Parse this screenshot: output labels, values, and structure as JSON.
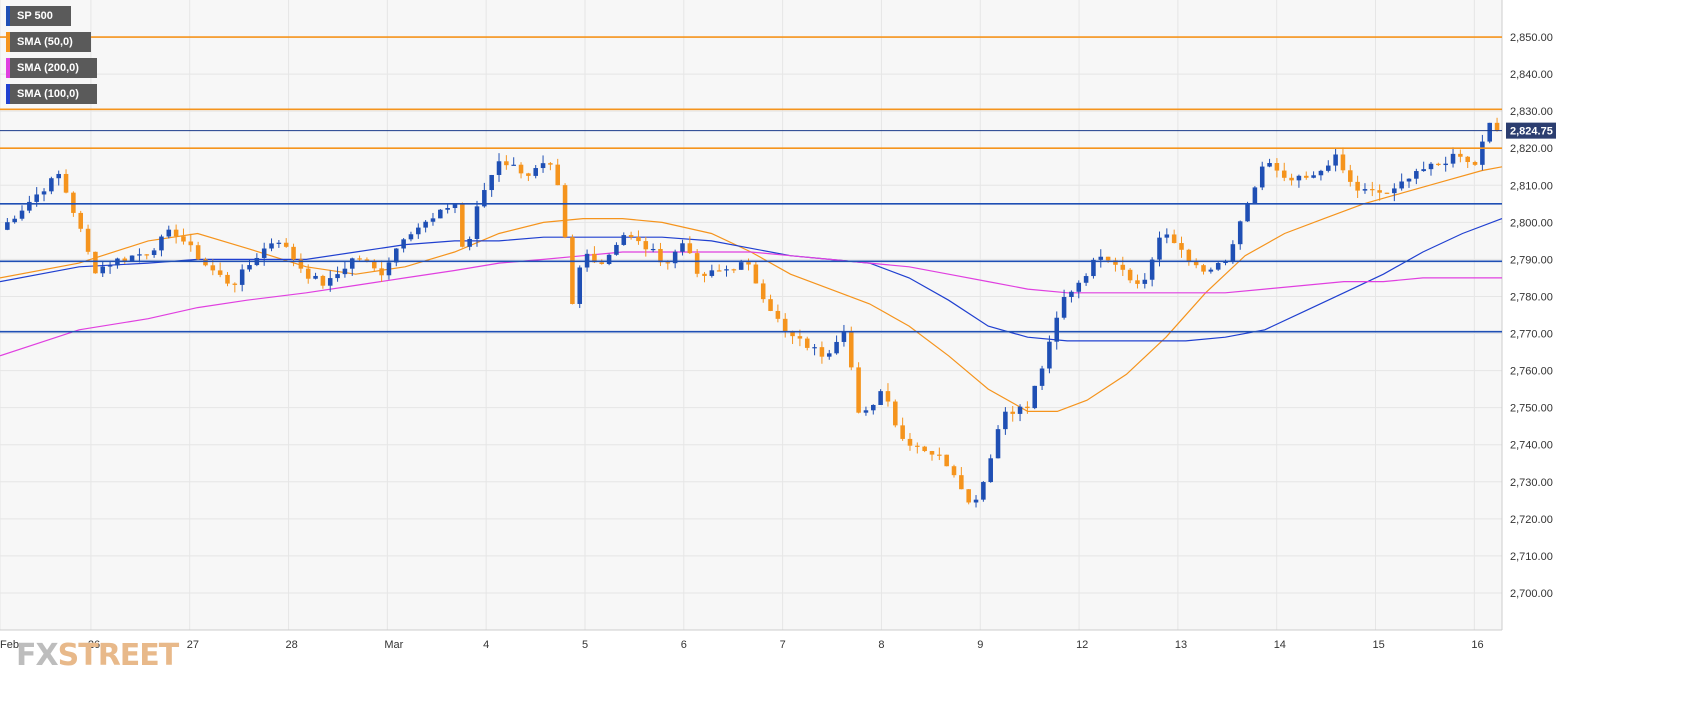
{
  "legend": [
    {
      "label": "SP 500",
      "color": "#1f4fb4"
    },
    {
      "label": "SMA (50,0)",
      "color": "#f5941d"
    },
    {
      "label": "SMA (200,0)",
      "color": "#e040e0"
    },
    {
      "label": "SMA (100,0)",
      "color": "#2040d0"
    }
  ],
  "watermark": {
    "fx": "FX",
    "street": "STREET"
  },
  "colors": {
    "up_candle": "#1f4fb4",
    "down_candle": "#f5941d",
    "resistance": "#f5941d",
    "support": "#1f4fb4",
    "current_price_line": "#1a3a8a",
    "sma50": "#f5941d",
    "sma100": "#2040d0",
    "sma200": "#e040e0",
    "grid": "#e6e6e6",
    "plot_bg": "#f7f7f7"
  },
  "chart_data": {
    "type": "candlestick",
    "title": "",
    "instrument": "SP 500",
    "ylim": [
      2690,
      2860
    ],
    "yticks": [
      2700,
      2710,
      2720,
      2730,
      2740,
      2750,
      2760,
      2770,
      2780,
      2790,
      2800,
      2810,
      2820,
      2830,
      2840,
      2850
    ],
    "ytick_labels": [
      "2,700.00",
      "2,710.00",
      "2,720.00",
      "2,730.00",
      "2,740.00",
      "2,750.00",
      "2,760.00",
      "2,770.00",
      "2,780.00",
      "2,790.00",
      "2,800.00",
      "2,810.00",
      "2,820.00",
      "2,830.00",
      "2,840.00",
      "2,850.00"
    ],
    "x_range": [
      0,
      15.2
    ],
    "xticks": [
      {
        "label": "Feb",
        "x": 0.0
      },
      {
        "label": "26",
        "x": 0.92
      },
      {
        "label": "27",
        "x": 1.92
      },
      {
        "label": "28",
        "x": 2.92
      },
      {
        "label": "Mar",
        "x": 3.92
      },
      {
        "label": "4",
        "x": 4.92
      },
      {
        "label": "5",
        "x": 5.92
      },
      {
        "label": "6",
        "x": 6.92
      },
      {
        "label": "7",
        "x": 7.92
      },
      {
        "label": "8",
        "x": 8.92
      },
      {
        "label": "9",
        "x": 9.92
      },
      {
        "label": "12",
        "x": 10.92
      },
      {
        "label": "13",
        "x": 11.92
      },
      {
        "label": "14",
        "x": 12.92
      },
      {
        "label": "15",
        "x": 13.92
      },
      {
        "label": "16",
        "x": 14.92
      }
    ],
    "current_price": 2824.75,
    "current_price_label": "2,824.75",
    "horizontal_levels": [
      {
        "value": 2850,
        "kind": "resistance"
      },
      {
        "value": 2830.5,
        "kind": "resistance"
      },
      {
        "value": 2820,
        "kind": "resistance"
      },
      {
        "value": 2805,
        "kind": "support"
      },
      {
        "value": 2789.5,
        "kind": "support"
      },
      {
        "value": 2770.5,
        "kind": "support"
      }
    ],
    "price_path": [
      [
        0.0,
        2798
      ],
      [
        0.35,
        2807
      ],
      [
        0.6,
        2813
      ],
      [
        0.8,
        2799
      ],
      [
        0.95,
        2787
      ],
      [
        1.2,
        2790
      ],
      [
        1.5,
        2792
      ],
      [
        1.75,
        2798
      ],
      [
        2.1,
        2788
      ],
      [
        2.35,
        2783
      ],
      [
        2.6,
        2791
      ],
      [
        2.8,
        2796
      ],
      [
        3.1,
        2786
      ],
      [
        3.3,
        2783
      ],
      [
        3.6,
        2791
      ],
      [
        3.85,
        2786
      ],
      [
        4.1,
        2797
      ],
      [
        4.4,
        2801
      ],
      [
        4.6,
        2806
      ],
      [
        4.7,
        2790
      ],
      [
        4.85,
        2806
      ],
      [
        5.05,
        2817
      ],
      [
        5.35,
        2813
      ],
      [
        5.55,
        2816
      ],
      [
        5.7,
        2805
      ],
      [
        5.76,
        2773
      ],
      [
        5.9,
        2792
      ],
      [
        6.1,
        2789
      ],
      [
        6.3,
        2797
      ],
      [
        6.55,
        2793
      ],
      [
        6.75,
        2789
      ],
      [
        6.95,
        2796
      ],
      [
        7.05,
        2785
      ],
      [
        7.3,
        2787
      ],
      [
        7.55,
        2789
      ],
      [
        7.75,
        2779
      ],
      [
        7.95,
        2770
      ],
      [
        8.15,
        2767
      ],
      [
        8.35,
        2764
      ],
      [
        8.55,
        2772
      ],
      [
        8.7,
        2746
      ],
      [
        8.95,
        2756
      ],
      [
        9.1,
        2742
      ],
      [
        9.35,
        2739
      ],
      [
        9.55,
        2736
      ],
      [
        9.7,
        2731
      ],
      [
        9.82,
        2723
      ],
      [
        9.95,
        2730
      ],
      [
        10.15,
        2749
      ],
      [
        10.4,
        2750
      ],
      [
        10.6,
        2765
      ],
      [
        10.75,
        2779
      ],
      [
        10.95,
        2785
      ],
      [
        11.15,
        2792
      ],
      [
        11.35,
        2788
      ],
      [
        11.55,
        2782
      ],
      [
        11.75,
        2797
      ],
      [
        11.95,
        2793
      ],
      [
        12.15,
        2786
      ],
      [
        12.4,
        2789
      ],
      [
        12.65,
        2806
      ],
      [
        12.8,
        2817
      ],
      [
        13.0,
        2811
      ],
      [
        13.3,
        2812
      ],
      [
        13.5,
        2818
      ],
      [
        13.7,
        2809
      ],
      [
        13.9,
        2808
      ],
      [
        14.1,
        2808
      ],
      [
        14.3,
        2814
      ],
      [
        14.55,
        2815
      ],
      [
        14.75,
        2819
      ],
      [
        14.95,
        2815
      ],
      [
        15.05,
        2829
      ],
      [
        15.15,
        2824.75
      ]
    ],
    "series": [
      {
        "name": "SMA (50,0)",
        "points": [
          [
            0.0,
            2785
          ],
          [
            0.8,
            2789
          ],
          [
            1.5,
            2795
          ],
          [
            2.0,
            2797
          ],
          [
            2.5,
            2793
          ],
          [
            3.1,
            2788
          ],
          [
            3.6,
            2786
          ],
          [
            4.1,
            2788
          ],
          [
            4.6,
            2792
          ],
          [
            5.05,
            2797
          ],
          [
            5.5,
            2800
          ],
          [
            5.9,
            2801
          ],
          [
            6.3,
            2801
          ],
          [
            6.7,
            2800
          ],
          [
            7.2,
            2797
          ],
          [
            7.6,
            2792
          ],
          [
            8.0,
            2786
          ],
          [
            8.4,
            2782
          ],
          [
            8.8,
            2778
          ],
          [
            9.2,
            2772
          ],
          [
            9.6,
            2764
          ],
          [
            10.0,
            2755
          ],
          [
            10.4,
            2749
          ],
          [
            10.7,
            2749
          ],
          [
            11.0,
            2752
          ],
          [
            11.4,
            2759
          ],
          [
            11.8,
            2769
          ],
          [
            12.2,
            2781
          ],
          [
            12.6,
            2791
          ],
          [
            13.0,
            2797
          ],
          [
            13.4,
            2801
          ],
          [
            13.8,
            2805
          ],
          [
            14.2,
            2808
          ],
          [
            14.6,
            2811
          ],
          [
            15.0,
            2814
          ],
          [
            15.2,
            2815
          ]
        ]
      },
      {
        "name": "SMA (100,0)",
        "points": [
          [
            0.0,
            2784
          ],
          [
            0.8,
            2788
          ],
          [
            1.5,
            2789
          ],
          [
            2.0,
            2790
          ],
          [
            2.5,
            2790
          ],
          [
            3.1,
            2790
          ],
          [
            3.6,
            2792
          ],
          [
            4.1,
            2794
          ],
          [
            4.6,
            2795
          ],
          [
            5.05,
            2795
          ],
          [
            5.5,
            2796
          ],
          [
            5.9,
            2796
          ],
          [
            6.3,
            2796
          ],
          [
            6.7,
            2796
          ],
          [
            7.2,
            2795
          ],
          [
            7.6,
            2793
          ],
          [
            8.0,
            2791
          ],
          [
            8.4,
            2790
          ],
          [
            8.8,
            2789
          ],
          [
            9.2,
            2785
          ],
          [
            9.6,
            2779
          ],
          [
            10.0,
            2772
          ],
          [
            10.4,
            2769
          ],
          [
            10.8,
            2768
          ],
          [
            11.2,
            2768
          ],
          [
            11.6,
            2768
          ],
          [
            12.0,
            2768
          ],
          [
            12.4,
            2769
          ],
          [
            12.8,
            2771
          ],
          [
            13.2,
            2776
          ],
          [
            13.6,
            2781
          ],
          [
            14.0,
            2786
          ],
          [
            14.4,
            2792
          ],
          [
            14.8,
            2797
          ],
          [
            15.2,
            2801
          ]
        ]
      },
      {
        "name": "SMA (200,0)",
        "points": [
          [
            0.0,
            2764
          ],
          [
            0.8,
            2771
          ],
          [
            1.5,
            2774
          ],
          [
            2.0,
            2777
          ],
          [
            2.5,
            2779
          ],
          [
            3.1,
            2781
          ],
          [
            3.6,
            2783
          ],
          [
            4.1,
            2785
          ],
          [
            4.6,
            2787
          ],
          [
            5.05,
            2789
          ],
          [
            5.5,
            2790
          ],
          [
            5.9,
            2791
          ],
          [
            6.3,
            2792
          ],
          [
            6.7,
            2792
          ],
          [
            7.2,
            2792
          ],
          [
            7.6,
            2792
          ],
          [
            8.0,
            2791
          ],
          [
            8.4,
            2790
          ],
          [
            8.8,
            2789
          ],
          [
            9.2,
            2788
          ],
          [
            9.6,
            2786
          ],
          [
            10.0,
            2784
          ],
          [
            10.4,
            2782
          ],
          [
            10.8,
            2781
          ],
          [
            11.2,
            2781
          ],
          [
            11.6,
            2781
          ],
          [
            12.0,
            2781
          ],
          [
            12.4,
            2781
          ],
          [
            12.8,
            2782
          ],
          [
            13.2,
            2783
          ],
          [
            13.6,
            2784
          ],
          [
            14.0,
            2784
          ],
          [
            14.4,
            2785
          ],
          [
            14.8,
            2785
          ],
          [
            15.2,
            2785
          ]
        ]
      }
    ]
  }
}
